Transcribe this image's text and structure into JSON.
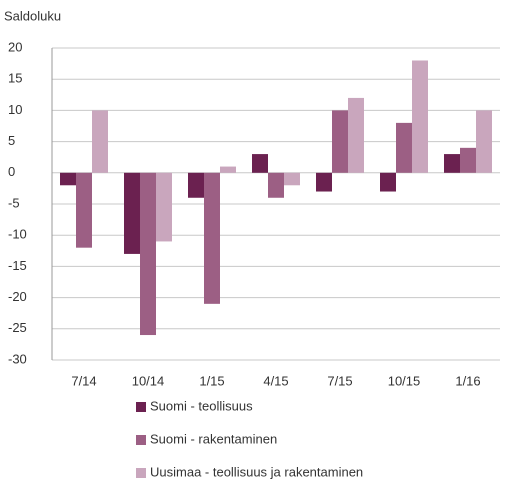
{
  "chart_data": {
    "type": "bar",
    "ylabel": "Saldoluku",
    "categories": [
      "7/14",
      "10/14",
      "1/15",
      "4/15",
      "7/15",
      "10/15",
      "1/16"
    ],
    "series": [
      {
        "name": "Suomi - teollisuus",
        "color": "#6b2150",
        "values": [
          -2,
          -13,
          -4,
          3,
          -3,
          -3,
          3
        ]
      },
      {
        "name": "Suomi - rakentaminen",
        "color": "#9c5f84",
        "values": [
          -12,
          -26,
          -21,
          -4,
          10,
          8,
          4
        ]
      },
      {
        "name": "Uusimaa - teollisuus ja rakentaminen",
        "color": "#c9a6bd",
        "values": [
          10,
          -11,
          1,
          -2,
          12,
          18,
          10
        ]
      }
    ],
    "ylim": [
      -30,
      20
    ],
    "yticks": [
      20,
      15,
      10,
      5,
      0,
      -5,
      -10,
      -15,
      -20,
      -25,
      -30
    ],
    "grid": true
  }
}
